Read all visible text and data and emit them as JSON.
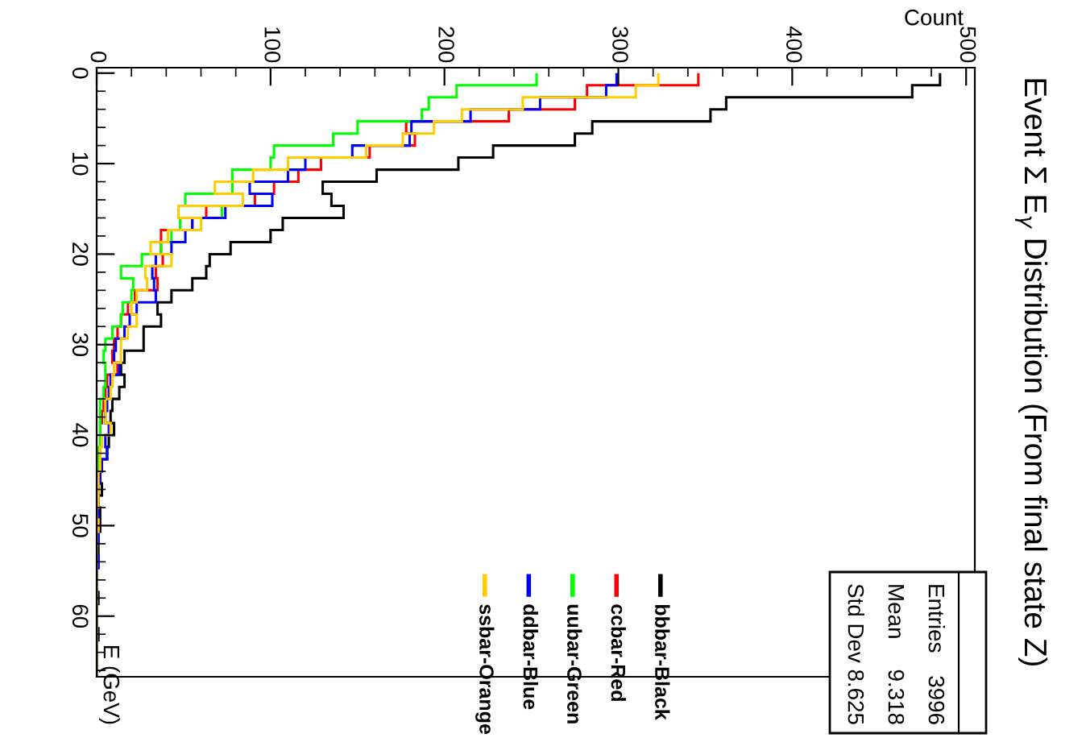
{
  "chart_data": {
    "type": "histogram",
    "orientation": "horizontal",
    "title": "Event Σ E$_{γ}$ Distribution (From final state Z)",
    "xlabel": "Count",
    "ylabel": "E (GeV)",
    "xlim": [
      0,
      505
    ],
    "xticks": [
      0,
      100,
      200,
      300,
      400,
      500
    ],
    "ylim": [
      66.7,
      -0.6
    ],
    "yticks": [
      0,
      10,
      20,
      30,
      40,
      50,
      60
    ],
    "grid": false,
    "legend": "bottom",
    "bins": [
      0,
      1.33,
      2.67,
      4,
      5.33,
      6.67,
      8,
      9.33,
      10.67,
      12,
      13.33,
      14.67,
      16,
      17.33,
      18.67,
      20,
      21.33,
      22.67,
      24,
      25.33,
      26.67,
      28,
      29.33,
      30.67,
      32,
      33.33,
      34.67,
      36,
      37.33,
      38.67,
      40,
      41.33,
      42.67,
      44,
      45.33,
      46.67,
      48,
      49.33,
      50.67,
      52,
      53.33,
      54.67,
      56,
      57.33,
      58.67,
      60,
      61.33,
      62.67,
      64,
      65.33,
      66.67
    ],
    "series": [
      {
        "name": "bbbar-Black",
        "color": "#000000",
        "values": [
          485,
          469,
          362,
          353,
          285,
          275,
          228,
          208,
          161,
          130,
          135,
          142,
          107,
          100,
          77,
          65,
          63,
          55,
          43,
          35,
          37,
          27,
          27,
          16,
          14,
          16,
          13,
          9,
          8,
          10,
          7,
          6,
          3,
          2,
          3,
          1,
          2,
          2,
          1,
          1,
          1,
          0,
          0,
          1,
          0,
          0,
          1,
          0,
          0,
          0
        ]
      },
      {
        "name": "ccbar-Red",
        "color": "#ff0000",
        "values": [
          346,
          282,
          275,
          237,
          178,
          183,
          157,
          129,
          116,
          102,
          91,
          63,
          55,
          37,
          37,
          38,
          34,
          35,
          22,
          18,
          14,
          12,
          10,
          9,
          12,
          6,
          5,
          4,
          3,
          2,
          2,
          2,
          2,
          1,
          1,
          1,
          0,
          1,
          0,
          0,
          0,
          0,
          0,
          0,
          0,
          0,
          0,
          0,
          0,
          0
        ]
      },
      {
        "name": "uubar-Green",
        "color": "#00ff00",
        "values": [
          253,
          207,
          191,
          187,
          150,
          136,
          102,
          100,
          78,
          78,
          51,
          72,
          48,
          43,
          37,
          26,
          14,
          21,
          20,
          15,
          14,
          9,
          5,
          4,
          5,
          5,
          4,
          2,
          2,
          2,
          2,
          1,
          1,
          1,
          0,
          1,
          0,
          0,
          0,
          0,
          0,
          0,
          0,
          0,
          0,
          0,
          0,
          0,
          0,
          0
        ]
      },
      {
        "name": "ddbar-Blue",
        "color": "#0000ff",
        "values": [
          299,
          293,
          255,
          215,
          181,
          180,
          147,
          120,
          110,
          88,
          101,
          74,
          55,
          51,
          43,
          34,
          32,
          33,
          34,
          23,
          19,
          16,
          11,
          10,
          13,
          8,
          7,
          6,
          5,
          7,
          5,
          6,
          3,
          2,
          1,
          1,
          1,
          0,
          1,
          0,
          1,
          0,
          0,
          0,
          0,
          0,
          0,
          0,
          0,
          0
        ]
      },
      {
        "name": "ssbar-Orange",
        "color": "#ffcc00",
        "values": [
          323,
          310,
          245,
          210,
          194,
          176,
          155,
          110,
          90,
          68,
          84,
          47,
          60,
          41,
          31,
          43,
          28,
          29,
          23,
          20,
          23,
          18,
          14,
          14,
          10,
          9,
          8,
          5,
          5,
          8,
          3,
          2,
          2,
          1,
          1,
          1,
          0,
          1,
          0,
          0,
          0,
          0,
          0,
          0,
          0,
          0,
          0,
          0,
          0,
          0
        ]
      }
    ],
    "annotations": [
      "Entries",
      "3996",
      "Mean",
      "9.318",
      "Std Dev",
      "8.625"
    ]
  }
}
